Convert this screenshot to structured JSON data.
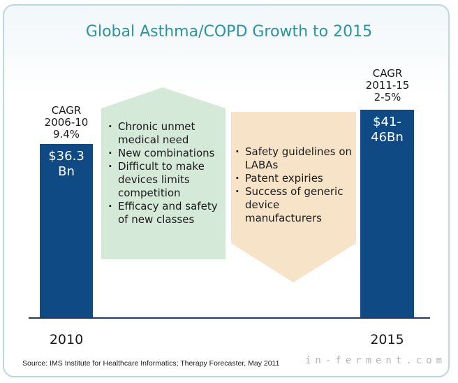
{
  "title": "Global Asthma/COPD Growth to 2015",
  "chart_data": {
    "type": "bar",
    "title": "Global Asthma/COPD Growth to 2015",
    "categories": [
      "2010",
      "2015"
    ],
    "values": [
      36.3,
      43.5
    ],
    "value_labels": [
      "$36.3\nBn",
      "$41-\n46Bn"
    ],
    "value_range_2015": [
      41,
      46
    ],
    "unit": "$Bn",
    "annotations": {
      "cagr_2010": "CAGR\n2006-10\n9.4%",
      "cagr_2015": "CAGR\n2011-15\n2-5%"
    },
    "colors": {
      "bar": "#0f4a84",
      "drivers": "#d5e9d8",
      "barriers": "#f6e3c8",
      "title": "#2a95a0"
    }
  },
  "drivers": [
    "Chronic unmet medical need",
    "New combinations",
    "Difficult to make devices limits competition",
    "Efficacy and safety of new classes"
  ],
  "barriers": [
    "Safety guidelines on LABAs",
    "Patent expiries",
    "Success of generic device manufacturers"
  ],
  "source": "Source: IMS Institute for Healthcare Informatics; Therapy Forecaster, May 2011",
  "watermark": "in-ferment.com"
}
